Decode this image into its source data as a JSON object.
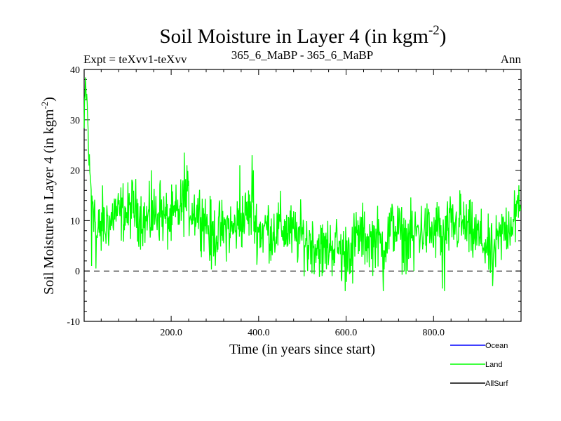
{
  "chart_data": {
    "type": "line",
    "title": "Soil Moisture in Layer 4 (in kgm",
    "title_sup": "-2",
    "title_close": ")",
    "subtitle_left": "Expt = teXvv1-teXvv",
    "subtitle_center": "365_6_MaBP - 365_6_MaBP",
    "subtitle_right": "Ann",
    "xlabel": "Time (in years since start)",
    "ylabel": "Soil Moisture in Layer 4 (in kgm",
    "ylabel_sup": "-2",
    "ylabel_close": ")",
    "xlim": [
      1,
      1000
    ],
    "ylim": [
      -10,
      40
    ],
    "x_ticks": [
      200,
      400,
      600,
      800
    ],
    "x_tick_labels": [
      "200.0",
      "400.0",
      "600.0",
      "800.0"
    ],
    "y_ticks": [
      -10,
      0,
      10,
      20,
      30,
      40
    ],
    "y_tick_labels": [
      "-10",
      "0",
      "10",
      "20",
      "30",
      "40"
    ],
    "reference_line": 0,
    "legend_position": "bottom-right",
    "series": [
      {
        "name": "Ocean",
        "color": "#0000ff",
        "values": []
      },
      {
        "name": "Land",
        "color": "#00ff00",
        "anchors": [
          [
            1,
            28
          ],
          [
            4,
            37
          ],
          [
            8,
            33
          ],
          [
            12,
            22
          ],
          [
            16,
            17
          ],
          [
            20,
            15
          ],
          [
            25,
            12
          ],
          [
            30,
            6
          ],
          [
            35,
            8
          ],
          [
            40,
            11
          ],
          [
            45,
            10
          ],
          [
            50,
            8
          ],
          [
            55,
            11
          ],
          [
            60,
            9
          ],
          [
            70,
            12
          ],
          [
            80,
            11
          ],
          [
            90,
            12
          ],
          [
            100,
            11
          ],
          [
            110,
            13
          ],
          [
            120,
            12
          ],
          [
            130,
            11
          ],
          [
            140,
            10
          ],
          [
            150,
            10
          ],
          [
            160,
            11
          ],
          [
            170,
            12
          ],
          [
            180,
            11
          ],
          [
            190,
            10
          ],
          [
            200,
            10
          ],
          [
            210,
            11
          ],
          [
            220,
            12
          ],
          [
            230,
            14
          ],
          [
            240,
            13
          ],
          [
            250,
            12
          ],
          [
            260,
            12
          ],
          [
            270,
            11
          ],
          [
            280,
            10
          ],
          [
            290,
            8
          ],
          [
            300,
            7
          ],
          [
            310,
            8
          ],
          [
            320,
            8
          ],
          [
            330,
            9
          ],
          [
            340,
            8
          ],
          [
            350,
            9
          ],
          [
            360,
            10
          ],
          [
            370,
            11
          ],
          [
            380,
            12
          ],
          [
            390,
            10
          ],
          [
            400,
            8
          ],
          [
            410,
            8
          ],
          [
            420,
            9
          ],
          [
            430,
            8
          ],
          [
            440,
            8
          ],
          [
            450,
            9
          ],
          [
            460,
            8
          ],
          [
            470,
            8
          ],
          [
            480,
            7
          ],
          [
            490,
            7
          ],
          [
            500,
            7
          ],
          [
            510,
            6
          ],
          [
            520,
            6
          ],
          [
            530,
            5
          ],
          [
            540,
            5
          ],
          [
            550,
            4
          ],
          [
            560,
            5
          ],
          [
            570,
            5
          ],
          [
            580,
            5
          ],
          [
            590,
            4
          ],
          [
            600,
            4
          ],
          [
            610,
            5
          ],
          [
            620,
            6
          ],
          [
            630,
            7
          ],
          [
            640,
            7
          ],
          [
            650,
            6
          ],
          [
            660,
            6
          ],
          [
            670,
            7
          ],
          [
            680,
            5
          ],
          [
            690,
            6
          ],
          [
            700,
            8
          ],
          [
            710,
            9
          ],
          [
            720,
            8
          ],
          [
            730,
            6
          ],
          [
            740,
            7
          ],
          [
            750,
            7
          ],
          [
            760,
            8
          ],
          [
            770,
            8
          ],
          [
            780,
            8
          ],
          [
            790,
            8
          ],
          [
            800,
            7
          ],
          [
            810,
            9
          ],
          [
            820,
            6
          ],
          [
            830,
            8
          ],
          [
            840,
            9
          ],
          [
            850,
            9
          ],
          [
            860,
            9
          ],
          [
            870,
            9
          ],
          [
            880,
            8
          ],
          [
            890,
            7
          ],
          [
            900,
            7
          ],
          [
            910,
            6
          ],
          [
            920,
            5
          ],
          [
            930,
            3
          ],
          [
            940,
            4
          ],
          [
            950,
            6
          ],
          [
            960,
            8
          ],
          [
            970,
            9
          ],
          [
            980,
            10
          ],
          [
            990,
            11
          ],
          [
            1000,
            12
          ]
        ],
        "spikes": [
          [
            18,
            1
          ],
          [
            28,
            0.5
          ],
          [
            40,
            4
          ],
          [
            155,
            20
          ],
          [
            175,
            18
          ],
          [
            230,
            23.5
          ],
          [
            236,
            21
          ],
          [
            288,
            2
          ],
          [
            292,
            0.3
          ],
          [
            357,
            21
          ],
          [
            385,
            23
          ],
          [
            388,
            20
          ],
          [
            428,
            2
          ],
          [
            512,
            0
          ],
          [
            545,
            -1
          ],
          [
            590,
            -2
          ],
          [
            598,
            -4
          ],
          [
            615,
            -2.5
          ],
          [
            685,
            -4
          ],
          [
            740,
            0
          ],
          [
            755,
            0
          ],
          [
            820,
            -3.5
          ],
          [
            825,
            -4
          ],
          [
            860,
            16
          ],
          [
            935,
            -3
          ],
          [
            985,
            16
          ],
          [
            995,
            17
          ]
        ]
      },
      {
        "name": "AllSurf",
        "color": "#000000",
        "values": []
      }
    ]
  }
}
